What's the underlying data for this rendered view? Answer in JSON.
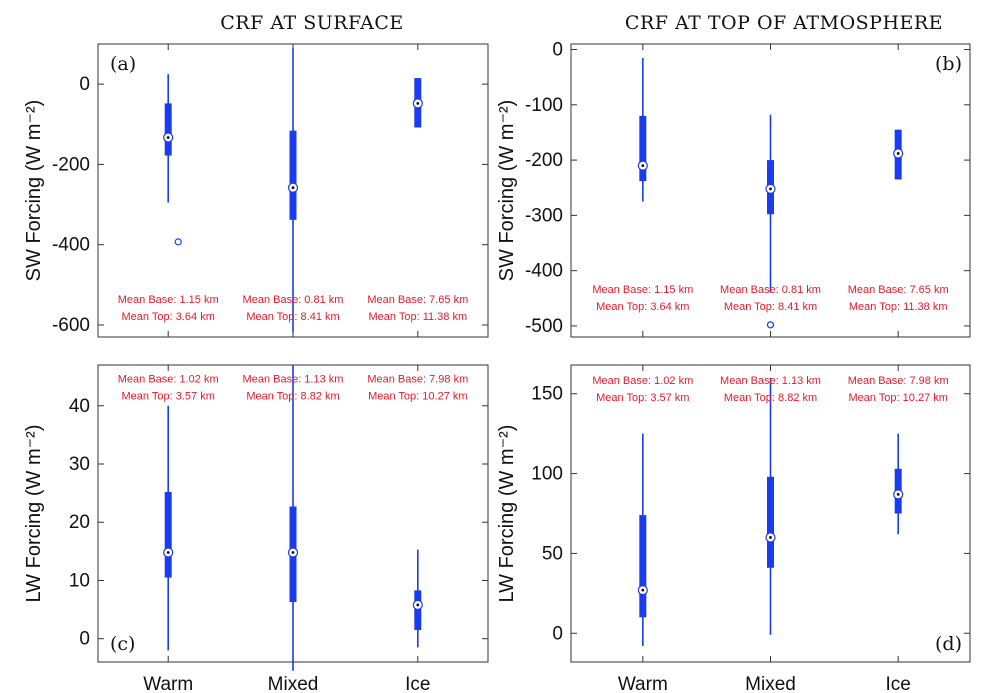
{
  "titles": [
    "CRF AT SURFACE",
    "CRF AT TOP OF ATMOSPHERE"
  ],
  "colors": {
    "box": "#1a3cf0",
    "annotation": "#e8192c",
    "axis": "#333333"
  },
  "chart_data": [
    {
      "id": "a",
      "type": "boxplot",
      "panel_label": "(a)",
      "ylabel": "SW Forcing (W m⁻²)",
      "ylim": [
        -630,
        100
      ],
      "yticks": [
        0,
        -200,
        -400,
        -600
      ],
      "categories": [
        "Warm",
        "Mixed",
        "Ice"
      ],
      "boxes": [
        {
          "whisker_low": -295,
          "q1": -178,
          "median": -133,
          "q3": -48,
          "whisker_high": 25,
          "outliers": [
            -393
          ]
        },
        {
          "whisker_low": -618,
          "q1": -338,
          "median": -258,
          "q3": -116,
          "whisker_high": 90,
          "outliers": []
        },
        {
          "whisker_low": -108,
          "q1": -108,
          "median": -48,
          "q3": 15,
          "whisker_high": 15,
          "outliers": []
        }
      ],
      "annotations": [
        [
          "Mean Base: 1.15 km",
          "Mean Top: 3.64 km"
        ],
        [
          "Mean Base: 0.81 km",
          "Mean Top: 8.41 km"
        ],
        [
          "Mean Base: 7.65 km",
          "Mean Top: 11.38 km"
        ]
      ],
      "annotation_y": -545
    },
    {
      "id": "b",
      "type": "boxplot",
      "panel_label": "(b)",
      "ylabel": "SW Forcing (W m⁻²)",
      "ylim": [
        -520,
        10
      ],
      "yticks": [
        0,
        -100,
        -200,
        -300,
        -400,
        -500
      ],
      "categories": [
        "Warm",
        "Mixed",
        "Ice"
      ],
      "boxes": [
        {
          "whisker_low": -275,
          "q1": -238,
          "median": -210,
          "q3": -120,
          "whisker_high": -15,
          "outliers": []
        },
        {
          "whisker_low": -440,
          "q1": -298,
          "median": -252,
          "q3": -200,
          "whisker_high": -118,
          "outliers": [
            -498
          ]
        },
        {
          "whisker_low": -235,
          "q1": -235,
          "median": -188,
          "q3": -145,
          "whisker_high": -145,
          "outliers": []
        }
      ],
      "annotations": [
        [
          "Mean Base: 1.15 km",
          "Mean Top: 3.64 km"
        ],
        [
          "Mean Base: 0.81 km",
          "Mean Top: 8.41 km"
        ],
        [
          "Mean Base: 7.65 km",
          "Mean Top: 11.38 km"
        ]
      ],
      "annotation_y": -440
    },
    {
      "id": "c",
      "type": "boxplot",
      "panel_label": "(c)",
      "ylabel": "LW Forcing (W m⁻²)",
      "ylim": [
        -4,
        47
      ],
      "yticks": [
        0,
        10,
        20,
        30,
        40
      ],
      "categories": [
        "Warm",
        "Mixed",
        "Ice"
      ],
      "boxes": [
        {
          "whisker_low": -2,
          "q1": 10.5,
          "median": 14.8,
          "q3": 25.2,
          "whisker_high": 40,
          "outliers": []
        },
        {
          "whisker_low": -5.5,
          "q1": 6.3,
          "median": 14.8,
          "q3": 22.7,
          "whisker_high": 47,
          "outliers": []
        },
        {
          "whisker_low": -1.5,
          "q1": 1.5,
          "median": 5.8,
          "q3": 8.3,
          "whisker_high": 15.3,
          "outliers": []
        }
      ],
      "annotations": [
        [
          "Mean Base: 1.02 km",
          "Mean Top: 3.57 km"
        ],
        [
          "Mean Base: 1.13 km",
          "Mean Top: 8.82 km"
        ],
        [
          "Mean Base: 7.98 km",
          "Mean Top: 10.27 km"
        ]
      ],
      "annotation_y": 44
    },
    {
      "id": "d",
      "type": "boxplot",
      "panel_label": "(d)",
      "ylabel": "LW Forcing (W m⁻²)",
      "ylim": [
        -18,
        168
      ],
      "yticks": [
        0,
        50,
        100,
        150
      ],
      "categories": [
        "Warm",
        "Mixed",
        "Ice"
      ],
      "boxes": [
        {
          "whisker_low": -8,
          "q1": 10,
          "median": 27,
          "q3": 74,
          "whisker_high": 125,
          "outliers": []
        },
        {
          "whisker_low": -1,
          "q1": 41,
          "median": 60,
          "q3": 98,
          "whisker_high": 160,
          "outliers": []
        },
        {
          "whisker_low": 62,
          "q1": 75,
          "median": 87,
          "q3": 103,
          "whisker_high": 125,
          "outliers": []
        }
      ],
      "annotations": [
        [
          "Mean Base: 1.02 km",
          "Mean Top: 3.57 km"
        ],
        [
          "Mean Base: 1.13 km",
          "Mean Top: 8.82 km"
        ],
        [
          "Mean Base: 7.98 km",
          "Mean Top: 10.27 km"
        ]
      ],
      "annotation_y": 156
    }
  ]
}
